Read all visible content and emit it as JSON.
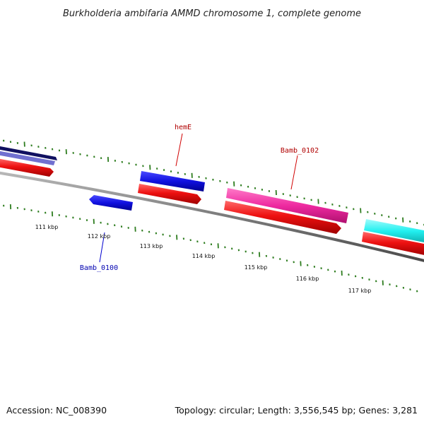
{
  "title": "Burkholderia ambifaria AMMD chromosome 1, complete genome",
  "footer": {
    "accession": "Accession: NC_008390",
    "info": "Topology: circular; Length: 3,556,545 bp; Genes: 3,281"
  },
  "tick_labels": [
    "111 kbp",
    "112 kbp",
    "113 kbp",
    "114 kbp",
    "115 kbp",
    "116 kbp",
    "117 kbp"
  ],
  "gene_labels": {
    "hemE": "hemE",
    "bamb_0102": "Bamb_0102",
    "bamb_0100": "Bamb_0100"
  },
  "colors": {
    "backbone": "#8a8a8a",
    "tick": "#2e7d1f",
    "cds_red": "#ee1111",
    "gene_blue": "#1010e0",
    "gene_navy": "#101060",
    "gene_lavender": "#7070d0",
    "gene_pink": "#ee2aa0",
    "gene_cyan": "#22f0f0",
    "label_red": "#b00000",
    "label_blue": "#0000b0"
  }
}
